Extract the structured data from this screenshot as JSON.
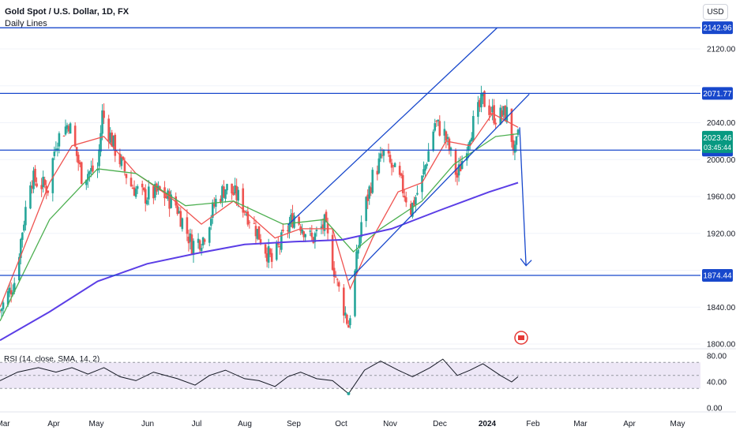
{
  "header": {
    "title": "Gold Spot / U.S. Dollar, 1D, FX",
    "subtitle": "Daily Lines",
    "currency": "USD"
  },
  "colors": {
    "up": "#26a69a",
    "down": "#ef5350",
    "ema_fast": "#ef5350",
    "ema_mid": "#4caf50",
    "ma_slow": "#5b3ee6",
    "levels": "#1848cc",
    "rsi": "#131722",
    "rsi_band": "#ede7f6",
    "price_tag": "#089981"
  },
  "chart_data": [
    {
      "type": "candlestick",
      "title": "Gold Spot / U.S. Dollar, 1D, FX",
      "ylabel": "USD",
      "ylim": [
        1780,
        2165
      ],
      "y_ticks": [
        1800,
        1840,
        1880,
        1920,
        1960,
        2000,
        2040,
        2080,
        2120
      ],
      "y_tick_labels": [
        "1800.00",
        "1840.00",
        "1880.00",
        "1920.00",
        "1960.00",
        "2000.00",
        "2040.00",
        "2080.00",
        "2120.00"
      ],
      "x_ticks": [
        "Mar",
        "Apr",
        "May",
        "Jun",
        "Jul",
        "Aug",
        "Sep",
        "Oct",
        "Nov",
        "Dec",
        "2024",
        "Feb",
        "Mar",
        "Apr",
        "May"
      ],
      "horizontal_levels": [
        {
          "value": 2142.96,
          "label": "2142.96"
        },
        {
          "value": 2071.77,
          "label": "2071.77"
        },
        {
          "value": 2010.29,
          "label": "2010.29"
        },
        {
          "value": 1874.44,
          "label": "1874.44"
        }
      ],
      "last_price": {
        "value": 2023.46,
        "label": "2023.46",
        "countdown": "03:45:44"
      },
      "series_close": [
        {
          "date": "2023-03-01",
          "close": 1836
        },
        {
          "date": "2023-03-10",
          "close": 1868
        },
        {
          "date": "2023-03-20",
          "close": 1980
        },
        {
          "date": "2023-03-31",
          "close": 1969
        },
        {
          "date": "2023-04-05",
          "close": 2020
        },
        {
          "date": "2023-04-13",
          "close": 2040
        },
        {
          "date": "2023-04-21",
          "close": 1983
        },
        {
          "date": "2023-05-01",
          "close": 1990
        },
        {
          "date": "2023-05-04",
          "close": 2050
        },
        {
          "date": "2023-05-12",
          "close": 2011
        },
        {
          "date": "2023-05-22",
          "close": 1972
        },
        {
          "date": "2023-05-30",
          "close": 1960
        },
        {
          "date": "2023-06-09",
          "close": 1965
        },
        {
          "date": "2023-06-19",
          "close": 1951
        },
        {
          "date": "2023-06-29",
          "close": 1908
        },
        {
          "date": "2023-07-06",
          "close": 1915
        },
        {
          "date": "2023-07-14",
          "close": 1955
        },
        {
          "date": "2023-07-20",
          "close": 1970
        },
        {
          "date": "2023-07-28",
          "close": 1959
        },
        {
          "date": "2023-08-08",
          "close": 1925
        },
        {
          "date": "2023-08-18",
          "close": 1889
        },
        {
          "date": "2023-08-25",
          "close": 1915
        },
        {
          "date": "2023-09-01",
          "close": 1940
        },
        {
          "date": "2023-09-12",
          "close": 1913
        },
        {
          "date": "2023-09-20",
          "close": 1930
        },
        {
          "date": "2023-09-28",
          "close": 1865
        },
        {
          "date": "2023-10-05",
          "close": 1820
        },
        {
          "date": "2023-10-13",
          "close": 1932
        },
        {
          "date": "2023-10-20",
          "close": 1981
        },
        {
          "date": "2023-10-27",
          "close": 2006
        },
        {
          "date": "2023-11-06",
          "close": 1977
        },
        {
          "date": "2023-11-13",
          "close": 1946
        },
        {
          "date": "2023-11-20",
          "close": 1978
        },
        {
          "date": "2023-11-28",
          "close": 2040
        },
        {
          "date": "2023-12-04",
          "close": 2028
        },
        {
          "date": "2023-12-12",
          "close": 1981
        },
        {
          "date": "2023-12-20",
          "close": 2030
        },
        {
          "date": "2023-12-28",
          "close": 2065
        },
        {
          "date": "2024-01-05",
          "close": 2046
        },
        {
          "date": "2024-01-12",
          "close": 2050
        },
        {
          "date": "2024-01-17",
          "close": 2006
        },
        {
          "date": "2024-01-19",
          "close": 2023.46
        }
      ],
      "moving_averages": [
        {
          "kind": "fast",
          "points": [
            [
              "2023-03-01",
              1840
            ],
            [
              "2023-03-15",
              1900
            ],
            [
              "2023-04-01",
              1975
            ],
            [
              "2023-04-15",
              2015
            ],
            [
              "2023-05-05",
              2025
            ],
            [
              "2023-05-25",
              1985
            ],
            [
              "2023-06-15",
              1960
            ],
            [
              "2023-07-05",
              1930
            ],
            [
              "2023-07-25",
              1955
            ],
            [
              "2023-08-20",
              1915
            ],
            [
              "2023-09-05",
              1925
            ],
            [
              "2023-09-25",
              1925
            ],
            [
              "2023-10-06",
              1860
            ],
            [
              "2023-10-20",
              1915
            ],
            [
              "2023-11-05",
              1965
            ],
            [
              "2023-11-20",
              1975
            ],
            [
              "2023-12-05",
              2020
            ],
            [
              "2023-12-20",
              2015
            ],
            [
              "2024-01-03",
              2050
            ],
            [
              "2024-01-19",
              2035
            ]
          ]
        },
        {
          "kind": "mid",
          "points": [
            [
              "2023-03-01",
              1825
            ],
            [
              "2023-04-01",
              1935
            ],
            [
              "2023-05-01",
              1990
            ],
            [
              "2023-05-25",
              1985
            ],
            [
              "2023-06-25",
              1950
            ],
            [
              "2023-07-25",
              1955
            ],
            [
              "2023-08-25",
              1930
            ],
            [
              "2023-09-20",
              1935
            ],
            [
              "2023-10-08",
              1900
            ],
            [
              "2023-10-25",
              1925
            ],
            [
              "2023-11-20",
              1955
            ],
            [
              "2023-12-10",
              1995
            ],
            [
              "2024-01-05",
              2025
            ],
            [
              "2024-01-19",
              2028
            ]
          ]
        },
        {
          "kind": "slow",
          "points": [
            [
              "2023-03-01",
              1804
            ],
            [
              "2023-04-01",
              1835
            ],
            [
              "2023-05-01",
              1868
            ],
            [
              "2023-06-01",
              1887
            ],
            [
              "2023-07-01",
              1898
            ],
            [
              "2023-08-01",
              1908
            ],
            [
              "2023-09-01",
              1911
            ],
            [
              "2023-10-01",
              1913
            ],
            [
              "2023-11-01",
              1925
            ],
            [
              "2023-12-01",
              1945
            ],
            [
              "2024-01-01",
              1965
            ],
            [
              "2024-01-19",
              1975
            ]
          ]
        }
      ],
      "trend_channel": {
        "upper": [
          [
            "2023-08-28",
            1929
          ],
          [
            "2024-01-06",
            2143
          ]
        ],
        "lower": [
          [
            "2023-10-05",
            1869
          ],
          [
            "2024-01-26",
            2071
          ]
        ]
      },
      "projection_arrow": {
        "from": [
          "2024-01-20",
          2035
        ],
        "to": [
          "2024-01-24",
          1885
        ]
      }
    },
    {
      "type": "line",
      "title": "RSI (14, close, SMA, 14, 2)",
      "ylim": [
        0,
        80
      ],
      "y_ticks": [
        0,
        40,
        80
      ],
      "y_tick_labels": [
        "0.00",
        "40.00",
        "80.00"
      ],
      "band": [
        30,
        70
      ],
      "points": [
        [
          "2023-03-01",
          42
        ],
        [
          "2023-03-12",
          55
        ],
        [
          "2023-03-25",
          62
        ],
        [
          "2023-04-05",
          55
        ],
        [
          "2023-04-15",
          62
        ],
        [
          "2023-04-25",
          52
        ],
        [
          "2023-05-05",
          62
        ],
        [
          "2023-05-15",
          48
        ],
        [
          "2023-05-25",
          42
        ],
        [
          "2023-06-05",
          55
        ],
        [
          "2023-06-20",
          45
        ],
        [
          "2023-07-01",
          35
        ],
        [
          "2023-07-10",
          50
        ],
        [
          "2023-07-20",
          58
        ],
        [
          "2023-08-01",
          45
        ],
        [
          "2023-08-10",
          42
        ],
        [
          "2023-08-20",
          33
        ],
        [
          "2023-08-28",
          48
        ],
        [
          "2023-09-05",
          55
        ],
        [
          "2023-09-15",
          45
        ],
        [
          "2023-09-25",
          42
        ],
        [
          "2023-10-05",
          22
        ],
        [
          "2023-10-15",
          58
        ],
        [
          "2023-10-25",
          72
        ],
        [
          "2023-11-05",
          58
        ],
        [
          "2023-11-14",
          48
        ],
        [
          "2023-11-25",
          62
        ],
        [
          "2023-12-03",
          75
        ],
        [
          "2023-12-12",
          50
        ],
        [
          "2023-12-20",
          58
        ],
        [
          "2023-12-28",
          68
        ],
        [
          "2024-01-08",
          50
        ],
        [
          "2024-01-15",
          40
        ],
        [
          "2024-01-19",
          48
        ]
      ]
    }
  ]
}
